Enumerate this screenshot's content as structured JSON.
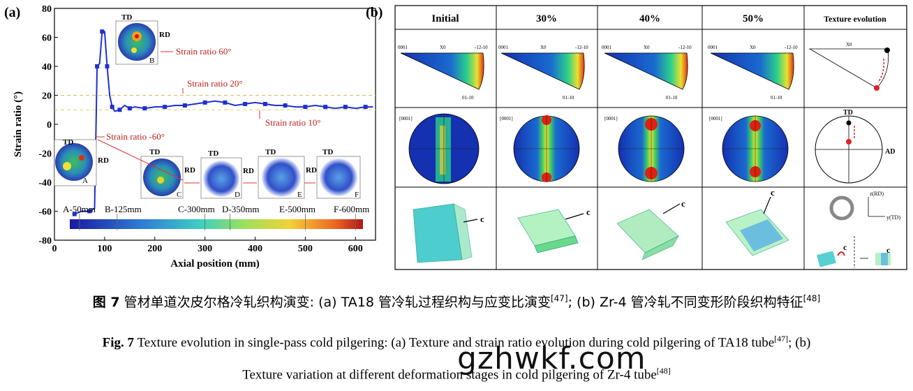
{
  "panel_a": {
    "label": "(a)",
    "ylabel": "Strain ratio (°)",
    "xlabel": "Axial position (mm)",
    "yticks": [
      "80",
      "60",
      "40",
      "20",
      "0",
      "-20",
      "-40",
      "-60",
      "-80"
    ],
    "xticks": [
      "0",
      "100",
      "200",
      "300",
      "400",
      "500",
      "600"
    ],
    "annotations": {
      "sr60": "Strain ratio 60°",
      "sr20": "Strain ratio 20°",
      "sr10": "Strain ratio 10°",
      "srm60": "Strain ratio -60°"
    },
    "stages": [
      "A-50mm",
      "B-125mm",
      "C-300mm",
      "D-350mm",
      "E-500mm",
      "F-600mm"
    ],
    "pf_letters": [
      "A",
      "B",
      "C",
      "D",
      "E",
      "F"
    ],
    "td": "TD",
    "rd": "RD"
  },
  "panel_b": {
    "label": "(b)",
    "headers": [
      "Initial",
      "30%",
      "40%",
      "50%",
      "Texture evolution"
    ],
    "ipf_labels": {
      "left": "0001",
      "mid": "X0",
      "right": "-12-10",
      "bottom": "01-10"
    },
    "pf_label": "[0001]",
    "td": "TD",
    "ad": "AD",
    "c": "c",
    "zrd": "z(RD)",
    "ytd": "y(TD)"
  },
  "chart_data": {
    "type": "line",
    "x": [
      40,
      55,
      70,
      80,
      85,
      90,
      95,
      100,
      105,
      110,
      115,
      120,
      130,
      140,
      150,
      160,
      180,
      200,
      220,
      240,
      260,
      280,
      300,
      320,
      340,
      360,
      380,
      400,
      420,
      440,
      460,
      480,
      500,
      520,
      540,
      560,
      580,
      600,
      620,
      635
    ],
    "y": [
      -62,
      -60,
      -60,
      -58,
      40,
      42,
      64,
      64,
      40,
      20,
      12,
      9,
      10,
      13,
      11,
      12,
      11,
      12,
      12,
      13,
      13,
      14,
      15,
      16,
      15,
      13,
      14,
      15,
      14,
      13,
      13,
      12,
      12,
      13,
      12,
      11,
      12,
      11,
      12,
      12
    ],
    "xlabel": "Axial position (mm)",
    "ylabel": "Strain ratio (°)",
    "xlim": [
      0,
      640
    ],
    "ylim": [
      -80,
      80
    ],
    "reference_lines": [
      20,
      10
    ]
  },
  "caption": {
    "cn_fig": "图 7",
    "cn_text": "管材单道次皮尔格冷轧织构演变: (a) TA18 管冷轧过程织构与应变比演变",
    "cn_ref1": "[47]",
    "cn_text2": "; (b) Zr-4 管冷轧不同变形阶段织构特征",
    "cn_ref2": "[48]",
    "en_fig": "Fig. 7",
    "en_text1": "Texture evolution in single-pass cold pilgering: (a) Texture and strain ratio evolution during cold pilgering of TA18 tube",
    "en_ref1": "[47]",
    "en_text1b": "; (b)",
    "en_text2": "Texture variation at different deformation stages in cold pilgering of Zr-4 tube",
    "en_ref2": "[48]"
  },
  "watermark": "gzhwkf.com"
}
